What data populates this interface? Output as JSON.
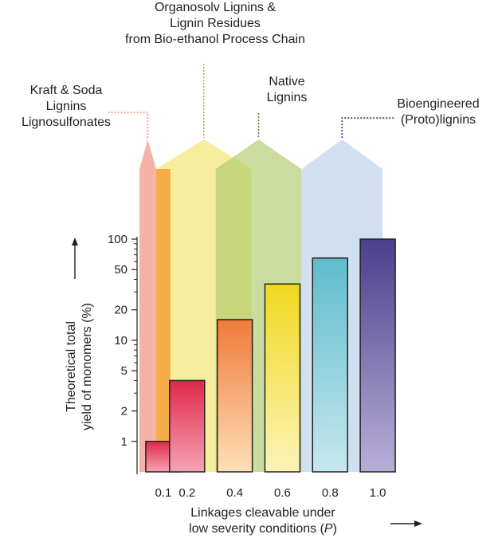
{
  "chart_data": {
    "type": "bar",
    "y_scale": "log",
    "ylim": [
      0.5,
      100
    ],
    "xlim": [
      0,
      1.1
    ],
    "ylabel_lines": [
      "Theoretical total",
      "yield of monomers (%)"
    ],
    "xlabel_main": "Linkages cleavable under",
    "xlabel_sub_pre": "low severity conditions (",
    "xlabel_sub_var": "P",
    "xlabel_sub_post": ")",
    "x_ticks": [
      0.1,
      0.2,
      0.4,
      0.6,
      0.8,
      1.0
    ],
    "x_tick_labels": [
      "0.1",
      "0.2",
      "0.4",
      "0.6",
      "0.8",
      "1.0"
    ],
    "y_ticks": [
      1,
      2,
      5,
      10,
      20,
      50,
      100
    ],
    "y_tick_labels": [
      "1",
      "2",
      "5",
      "10",
      "20",
      "50",
      "100"
    ],
    "bars": [
      {
        "x": 0.1,
        "y": 1,
        "color_top": "#e0284a",
        "color_bottom": "#f5a3b3"
      },
      {
        "x": 0.2,
        "y": 4,
        "color_top": "#e0284a",
        "color_bottom": "#f5a3b3"
      },
      {
        "x": 0.4,
        "y": 16,
        "color_top": "#f07a3a",
        "color_bottom": "#fde0b8"
      },
      {
        "x": 0.6,
        "y": 36,
        "color_top": "#f0d820",
        "color_bottom": "#fdf3b8"
      },
      {
        "x": 0.8,
        "y": 65,
        "color_top": "#5fbccc",
        "color_bottom": "#c6e7ee"
      },
      {
        "x": 1.0,
        "y": 100,
        "color_top": "#4a3f8c",
        "color_bottom": "#b8afd8"
      }
    ],
    "lignin_categories": [
      {
        "name": "Kraft & Soda\nLignins\nLignosulfonates",
        "x_start": 0.0,
        "x_end": 0.07,
        "color": "#f08a7a"
      },
      {
        "name": "Organosolv Lignins &\nLignin Residues\nfrom Bio-ethanol Process Chain",
        "x_start": 0.07,
        "x_end": 0.47,
        "color": "#f5e26a"
      },
      {
        "name": "Native\nLignins",
        "x_start": 0.32,
        "x_end": 0.68,
        "color": "#aecb6a"
      },
      {
        "name": "Bioengineered\n(Proto)lignins",
        "x_start": 0.68,
        "x_end": 1.02,
        "color": "#b8d0ea"
      }
    ],
    "marker_color": "#f4a13a"
  }
}
